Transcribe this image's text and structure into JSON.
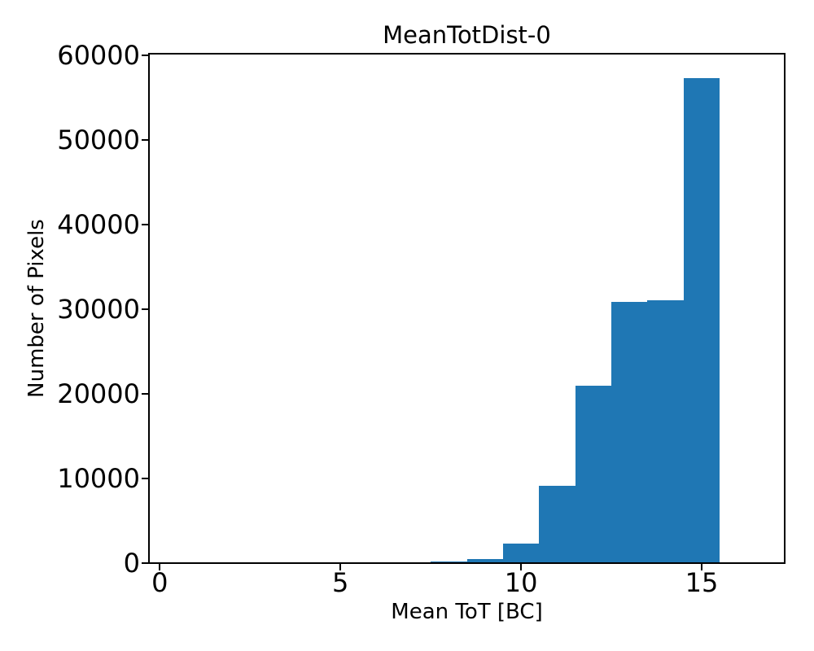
{
  "figure": {
    "title": "MeanTotDist-0",
    "xlabel": "Mean ToT [BC]",
    "ylabel": "Number of Pixels"
  },
  "chart_data": {
    "type": "bar",
    "subtype": "histogram",
    "title": "MeanTotDist-0",
    "xlabel": "Mean ToT [BC]",
    "ylabel": "Number of Pixels",
    "bar_color": "#1f77b4",
    "bin_edges": [
      7.5,
      8.5,
      9.5,
      10.5,
      11.5,
      12.5,
      13.5,
      14.5,
      15.5
    ],
    "counts": [
      160,
      480,
      2300,
      9150,
      21000,
      30900,
      31100,
      57300
    ],
    "x_ticks": [
      0,
      5,
      10,
      15
    ],
    "y_ticks": [
      0,
      10000,
      20000,
      30000,
      40000,
      50000,
      60000
    ],
    "xlim": [
      -0.3,
      17.3
    ],
    "ylim": [
      0,
      60200
    ],
    "grid": false,
    "legend": null
  }
}
